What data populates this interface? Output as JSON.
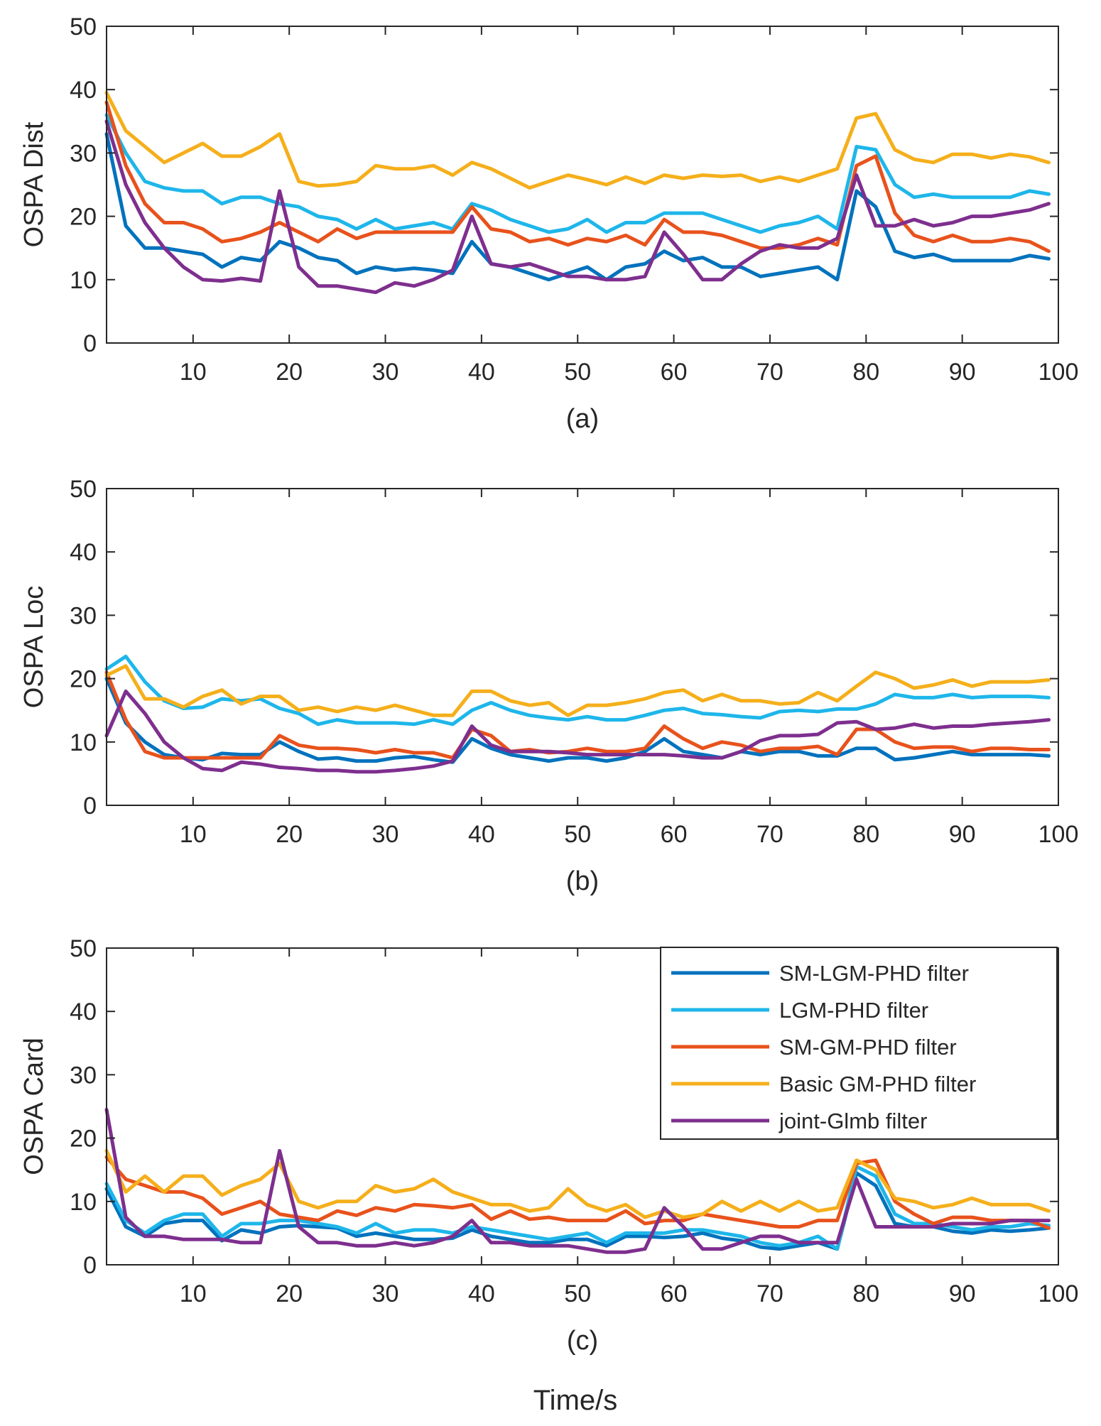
{
  "colors": {
    "axis": "#262626",
    "background": "#ffffff"
  },
  "figure": {
    "xlabel": "Time/s"
  },
  "chart_data": [
    {
      "type": "line",
      "panel_label": "(a)",
      "ylabel": "OSPA Dist",
      "xlim": [
        1,
        100
      ],
      "ylim": [
        0,
        50
      ],
      "xticks": [
        10,
        20,
        30,
        40,
        50,
        60,
        70,
        80,
        90,
        100
      ],
      "yticks": [
        0,
        10,
        20,
        30,
        40,
        50
      ],
      "x": [
        1,
        3,
        5,
        7,
        9,
        11,
        13,
        15,
        17,
        19,
        21,
        23,
        25,
        27,
        29,
        31,
        33,
        35,
        37,
        39,
        41,
        43,
        45,
        47,
        49,
        51,
        53,
        55,
        57,
        59,
        61,
        63,
        65,
        67,
        69,
        71,
        73,
        75,
        77,
        79,
        81,
        83,
        85,
        87,
        89,
        91,
        93,
        95,
        97,
        99
      ],
      "series": [
        {
          "name": "SM-LGM-PHD filter",
          "color": "#0072BD",
          "values": [
            33,
            18.5,
            15,
            15,
            14.5,
            14,
            12,
            13.5,
            13,
            16,
            15,
            13.5,
            13,
            11,
            12,
            11.5,
            11.8,
            11.5,
            11,
            16,
            12.5,
            12,
            11,
            10,
            11,
            12,
            10,
            12,
            12.5,
            14.5,
            13,
            13.5,
            12,
            12,
            10.5,
            11,
            11.5,
            12,
            10,
            24,
            21.5,
            14.5,
            13.5,
            14,
            13,
            13,
            13,
            13,
            13.8,
            13.3
          ]
        },
        {
          "name": "LGM-PHD filter",
          "color": "#1EB6EA",
          "values": [
            36,
            30,
            25.5,
            24.5,
            24,
            24,
            22,
            23,
            23,
            22,
            21.5,
            20,
            19.5,
            18,
            19.5,
            18,
            18.5,
            19,
            18,
            22,
            21,
            19.5,
            18.5,
            17.5,
            18,
            19.5,
            17.5,
            19,
            19,
            20.5,
            20.5,
            20.5,
            19.5,
            18.5,
            17.5,
            18.5,
            19,
            20,
            18,
            31,
            30.5,
            25,
            23,
            23.5,
            23,
            23,
            23,
            23,
            24,
            23.5
          ]
        },
        {
          "name": "SM-GM-PHD filter",
          "color": "#E8521C",
          "values": [
            38,
            28,
            22,
            19,
            19,
            18,
            16,
            16.5,
            17.5,
            19,
            17.5,
            16,
            18,
            16.5,
            17.5,
            17.5,
            17.5,
            17.5,
            17.5,
            21.5,
            18,
            17.5,
            16,
            16.5,
            15.5,
            16.5,
            16,
            17,
            15.5,
            19.5,
            17.5,
            17.5,
            17,
            16,
            15,
            15,
            15.5,
            16.5,
            15.5,
            28,
            29.5,
            20.5,
            17,
            16,
            17,
            16,
            16,
            16.5,
            16,
            14.5
          ]
        },
        {
          "name": "Basic GM-PHD filter",
          "color": "#F5AF1B",
          "values": [
            39.5,
            33.5,
            31,
            28.5,
            30,
            31.5,
            29.5,
            29.5,
            31,
            33,
            25.5,
            24.8,
            25,
            25.5,
            28,
            27.5,
            27.5,
            28,
            26.5,
            28.5,
            27.5,
            26,
            24.5,
            25.5,
            26.5,
            25.8,
            25,
            26.2,
            25.2,
            26.5,
            26,
            26.5,
            26.3,
            26.5,
            25.5,
            26.2,
            25.5,
            26.5,
            27.5,
            35.5,
            36.2,
            30.5,
            29,
            28.5,
            29.8,
            29.8,
            29.2,
            29.8,
            29.4,
            28.5
          ]
        },
        {
          "name": "joint-Glmb filter",
          "color": "#7E2F8E",
          "values": [
            35,
            25,
            19,
            15,
            12,
            10,
            9.8,
            10.2,
            9.8,
            24,
            12,
            9,
            9,
            8.5,
            8,
            9.5,
            9,
            10,
            11.5,
            20,
            12.5,
            12,
            12.5,
            11.5,
            10.5,
            10.5,
            10,
            10,
            10.5,
            17.5,
            14,
            10,
            10,
            12.5,
            14.5,
            15.5,
            15,
            15,
            16.5,
            26.5,
            18.5,
            18.5,
            19.5,
            18.5,
            19,
            20,
            20,
            20.5,
            21,
            22
          ]
        }
      ]
    },
    {
      "type": "line",
      "panel_label": "(b)",
      "ylabel": "OSPA Loc",
      "xlim": [
        1,
        100
      ],
      "ylim": [
        0,
        50
      ],
      "xticks": [
        10,
        20,
        30,
        40,
        50,
        60,
        70,
        80,
        90,
        100
      ],
      "yticks": [
        0,
        10,
        20,
        30,
        40,
        50
      ],
      "x": [
        1,
        3,
        5,
        7,
        9,
        11,
        13,
        15,
        17,
        19,
        21,
        23,
        25,
        27,
        29,
        31,
        33,
        35,
        37,
        39,
        41,
        43,
        45,
        47,
        49,
        51,
        53,
        55,
        57,
        59,
        61,
        63,
        65,
        67,
        69,
        71,
        73,
        75,
        77,
        79,
        81,
        83,
        85,
        87,
        89,
        91,
        93,
        95,
        97,
        99
      ],
      "series": [
        {
          "name": "SM-LGM-PHD filter",
          "color": "#0072BD",
          "values": [
            20,
            13,
            10,
            8,
            7.5,
            7.2,
            8.2,
            8,
            8,
            10,
            8.5,
            7.3,
            7.5,
            7,
            7,
            7.5,
            7.7,
            7.2,
            6.8,
            10.5,
            9,
            8,
            7.5,
            7,
            7.5,
            7.5,
            7,
            7.5,
            8.5,
            10.5,
            8.5,
            8,
            7.5,
            8.5,
            8,
            8.5,
            8.5,
            7.8,
            7.8,
            9,
            9,
            7.2,
            7.5,
            8,
            8.5,
            8,
            8,
            8,
            8,
            7.8
          ]
        },
        {
          "name": "LGM-PHD filter",
          "color": "#1EB6EA",
          "values": [
            21.5,
            23.5,
            19.5,
            16.5,
            15.3,
            15.5,
            16.8,
            16.5,
            16.8,
            15.3,
            14.5,
            12.8,
            13.5,
            13,
            13,
            13,
            12.8,
            13.5,
            12.8,
            15,
            16.2,
            15,
            14.2,
            13.8,
            13.5,
            14,
            13.5,
            13.5,
            14.2,
            15,
            15.3,
            14.5,
            14.3,
            14,
            13.8,
            14.8,
            15,
            14.8,
            15.2,
            15.2,
            16,
            17.5,
            17,
            17,
            17.5,
            17,
            17.2,
            17.2,
            17.2,
            17
          ]
        },
        {
          "name": "SM-GM-PHD filter",
          "color": "#E8521C",
          "values": [
            21,
            13.5,
            8.5,
            7.5,
            7.5,
            7.5,
            7.5,
            7.5,
            7.5,
            11,
            9.5,
            9,
            9,
            8.8,
            8.3,
            8.8,
            8.3,
            8.3,
            7.5,
            12,
            11,
            8.5,
            8.8,
            8.3,
            8.5,
            9,
            8.5,
            8.5,
            9,
            12.5,
            10.5,
            9,
            10,
            9.5,
            8.5,
            9,
            9,
            9.3,
            8,
            12,
            12,
            10,
            9,
            9.2,
            9.2,
            8.5,
            9,
            9,
            8.8,
            8.8
          ]
        },
        {
          "name": "Basic GM-PHD filter",
          "color": "#F5AF1B",
          "values": [
            20.5,
            22,
            16.8,
            16.8,
            15.5,
            17.2,
            18.2,
            16,
            17.2,
            17.2,
            15,
            15.5,
            14.8,
            15.5,
            15,
            15.8,
            15,
            14.2,
            14.2,
            18,
            18,
            16.5,
            15.8,
            16.2,
            14.2,
            15.8,
            15.8,
            16.2,
            16.8,
            17.8,
            18.2,
            16.5,
            17.5,
            16.5,
            16.5,
            16,
            16.2,
            17.8,
            16.5,
            18.8,
            21,
            20,
            18.5,
            19,
            19.8,
            18.8,
            19.5,
            19.5,
            19.5,
            19.8
          ]
        },
        {
          "name": "joint-Glmb filter",
          "color": "#7E2F8E",
          "values": [
            11,
            18,
            14.5,
            10,
            7.5,
            5.8,
            5.5,
            6.8,
            6.5,
            6,
            5.8,
            5.5,
            5.5,
            5.3,
            5.3,
            5.5,
            5.8,
            6.2,
            7,
            12.5,
            9.5,
            8.5,
            8.5,
            8.5,
            8.3,
            8,
            8,
            8,
            8,
            8,
            7.8,
            7.5,
            7.5,
            8.5,
            10.2,
            11,
            11,
            11.2,
            13,
            13.2,
            12,
            12.2,
            12.8,
            12.2,
            12.5,
            12.5,
            12.8,
            13,
            13.2,
            13.5
          ]
        }
      ]
    },
    {
      "type": "line",
      "panel_label": "(c)",
      "ylabel": "OSPA Card",
      "xlim": [
        1,
        100
      ],
      "ylim": [
        0,
        50
      ],
      "xticks": [
        10,
        20,
        30,
        40,
        50,
        60,
        70,
        80,
        90,
        100
      ],
      "yticks": [
        0,
        10,
        20,
        30,
        40,
        50
      ],
      "legend_position": "top-right",
      "x": [
        1,
        3,
        5,
        7,
        9,
        11,
        13,
        15,
        17,
        19,
        21,
        23,
        25,
        27,
        29,
        31,
        33,
        35,
        37,
        39,
        41,
        43,
        45,
        47,
        49,
        51,
        53,
        55,
        57,
        59,
        61,
        63,
        65,
        67,
        69,
        71,
        73,
        75,
        77,
        79,
        81,
        83,
        85,
        87,
        89,
        91,
        93,
        95,
        97,
        99
      ],
      "series": [
        {
          "name": "SM-LGM-PHD filter",
          "color": "#0072BD",
          "values": [
            12,
            6,
            4.5,
            6.5,
            7,
            7,
            3.8,
            5.5,
            5,
            6,
            6.2,
            6,
            5.8,
            4.5,
            5,
            4.5,
            4,
            4,
            4.2,
            5.5,
            4.5,
            4,
            3.5,
            3.5,
            4,
            4,
            3,
            4.5,
            4.5,
            4.3,
            4.5,
            5,
            4.2,
            3.8,
            2.8,
            2.5,
            3,
            3.5,
            2.5,
            14.5,
            12.5,
            6.5,
            6,
            6,
            5.3,
            5,
            5.5,
            5.3,
            5.5,
            5.8
          ]
        },
        {
          "name": "LGM-PHD filter",
          "color": "#1EB6EA",
          "values": [
            12.8,
            7,
            5,
            7,
            8,
            8,
            4.5,
            6.5,
            6.5,
            7,
            7,
            6.5,
            6,
            5,
            6.5,
            5,
            5.5,
            5.5,
            5,
            6,
            5.5,
            5,
            4.5,
            4,
            4.5,
            5,
            3.5,
            5,
            5,
            5,
            5.5,
            5.5,
            5,
            4.5,
            3.5,
            3,
            3.5,
            4.5,
            2.5,
            15.5,
            14,
            8,
            6.5,
            6.5,
            6,
            5.5,
            6,
            6,
            6.5,
            6.2
          ]
        },
        {
          "name": "SM-GM-PHD filter",
          "color": "#E8521C",
          "values": [
            17,
            13.5,
            12.5,
            11.5,
            11.5,
            10.5,
            8,
            9,
            10,
            8,
            7.5,
            7,
            8.5,
            7.8,
            9,
            8.5,
            9.5,
            9.3,
            9,
            9.5,
            7.2,
            8.5,
            7.2,
            7.5,
            7,
            7,
            7,
            8.5,
            6.5,
            7,
            7,
            8,
            7.5,
            7,
            6.5,
            6,
            6,
            7,
            7,
            16,
            16.5,
            10,
            8,
            6.5,
            7.5,
            7.5,
            7,
            7,
            7,
            5.8
          ]
        },
        {
          "name": "Basic GM-PHD filter",
          "color": "#F5AF1B",
          "values": [
            18,
            11.5,
            14,
            11.5,
            14,
            14,
            11,
            12.5,
            13.5,
            16,
            10,
            9,
            10,
            10,
            12.5,
            11.5,
            12,
            13.5,
            11.5,
            10.5,
            9.5,
            9.5,
            8.5,
            9,
            12,
            9.5,
            8.5,
            9.5,
            7.5,
            8.5,
            7.5,
            8,
            10,
            8.5,
            10,
            8.5,
            10,
            8.5,
            9,
            16.5,
            15,
            10.5,
            10,
            9,
            9.5,
            10.5,
            9.5,
            9.5,
            9.5,
            8.5
          ]
        },
        {
          "name": "joint-Glmb filter",
          "color": "#7E2F8E",
          "values": [
            24.5,
            7.5,
            4.5,
            4.5,
            4,
            4,
            4,
            3.5,
            3.5,
            18,
            6,
            3.5,
            3.5,
            3,
            3,
            3.5,
            3,
            3.5,
            4.5,
            7,
            3.5,
            3.5,
            3,
            3,
            3,
            2.5,
            2,
            2,
            2.5,
            9,
            6,
            2.5,
            2.5,
            3.5,
            4.5,
            4.5,
            3.5,
            3.5,
            3.5,
            13.5,
            6,
            6,
            6,
            6,
            6.5,
            6.5,
            6.5,
            7,
            7,
            7
          ]
        }
      ]
    }
  ]
}
